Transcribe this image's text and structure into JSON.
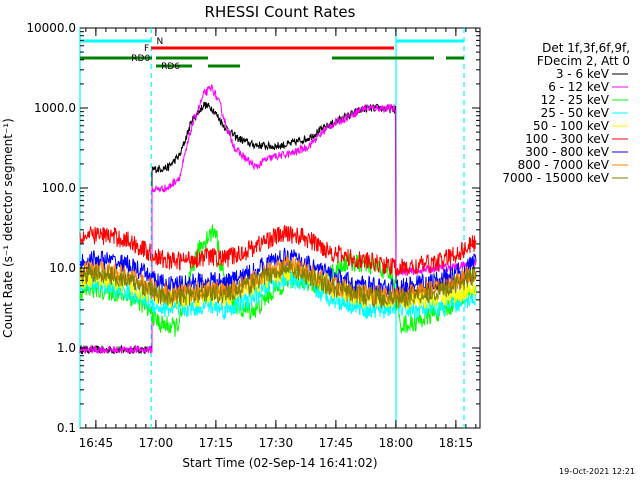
{
  "chart_data": {
    "type": "line",
    "title": "RHESSI Count Rates",
    "xlabel": "Start Time (02-Sep-14 16:41:02)",
    "ylabel": "Count Rate (s⁻¹ detector segment⁻¹)",
    "yscale": "log",
    "ylim": [
      0.1,
      10000
    ],
    "xlim_minutes_after_start": [
      0,
      100
    ],
    "y_ticks": [
      "0.1",
      "1.0",
      "10.0",
      "100.0",
      "1000.0",
      "10000.0"
    ],
    "x_ticks": [
      {
        "label": "16:45",
        "t": 3.97
      },
      {
        "label": "17:00",
        "t": 18.97
      },
      {
        "label": "17:15",
        "t": 33.97
      },
      {
        "label": "17:30",
        "t": 48.97
      },
      {
        "label": "17:45",
        "t": 63.97
      },
      {
        "label": "18:00",
        "t": 78.97
      },
      {
        "label": "18:15",
        "t": 93.97
      }
    ],
    "legend_header": [
      "Det 1f,3f,6f,9f,",
      "FDecim 2, Att 0"
    ],
    "legend_position": "right",
    "series": [
      {
        "name": "3 - 6 keV",
        "color": "#000000",
        "points": [
          [
            0,
            0.95
          ],
          [
            18,
            0.95
          ],
          [
            18.01,
            170
          ],
          [
            22,
            180
          ],
          [
            25,
            260
          ],
          [
            28,
            700
          ],
          [
            31,
            1100
          ],
          [
            33,
            1000
          ],
          [
            36,
            600
          ],
          [
            39,
            430
          ],
          [
            43,
            350
          ],
          [
            48,
            330
          ],
          [
            52,
            350
          ],
          [
            57,
            420
          ],
          [
            62,
            600
          ],
          [
            67,
            800
          ],
          [
            71,
            980
          ],
          [
            75,
            1000
          ],
          [
            78.9,
            950
          ],
          [
            79,
            7
          ],
          [
            80,
            4.5
          ],
          [
            82,
            5
          ],
          [
            86,
            5.5
          ],
          [
            90,
            6
          ],
          [
            95,
            7
          ],
          [
            99,
            8
          ]
        ]
      },
      {
        "name": "6 - 12 keV",
        "color": "#ff00ff",
        "points": [
          [
            0,
            0.95
          ],
          [
            18,
            0.95
          ],
          [
            18.01,
            95
          ],
          [
            22,
            100
          ],
          [
            25,
            140
          ],
          [
            28,
            600
          ],
          [
            31,
            1500
          ],
          [
            33,
            1800
          ],
          [
            35,
            1100
          ],
          [
            37,
            500
          ],
          [
            39,
            300
          ],
          [
            42,
            220
          ],
          [
            44,
            180
          ],
          [
            46,
            220
          ],
          [
            49,
            250
          ],
          [
            53,
            270
          ],
          [
            57,
            330
          ],
          [
            62,
            580
          ],
          [
            67,
            780
          ],
          [
            71,
            1000
          ],
          [
            75,
            1000
          ],
          [
            78.9,
            980
          ],
          [
            79,
            9
          ],
          [
            82,
            9
          ],
          [
            86,
            9.5
          ],
          [
            90,
            10
          ],
          [
            95,
            10.5
          ],
          [
            99,
            12
          ]
        ]
      },
      {
        "name": "12 - 25 keV",
        "color": "#00ff00",
        "points": [
          [
            0,
            5
          ],
          [
            4,
            5.5
          ],
          [
            8,
            5
          ],
          [
            12,
            4.5
          ],
          [
            16,
            3.5
          ],
          [
            20,
            2
          ],
          [
            24,
            1.8
          ],
          [
            26,
            3
          ],
          [
            28,
            10
          ],
          [
            30,
            18
          ],
          [
            32,
            25
          ],
          [
            34,
            30
          ],
          [
            35,
            12
          ],
          [
            37,
            5
          ],
          [
            40,
            3
          ],
          [
            44,
            3
          ],
          [
            48,
            5
          ],
          [
            52,
            7
          ],
          [
            56,
            7
          ],
          [
            60,
            6
          ],
          [
            63,
            9
          ],
          [
            67,
            12
          ],
          [
            71,
            11
          ],
          [
            75,
            10
          ],
          [
            78,
            8
          ],
          [
            80,
            2
          ],
          [
            83,
            2
          ],
          [
            87,
            2.5
          ],
          [
            91,
            3
          ],
          [
            95,
            4
          ],
          [
            99,
            5
          ]
        ]
      },
      {
        "name": "25 - 50 keV",
        "color": "#00ffff",
        "points": [
          [
            0,
            6
          ],
          [
            4,
            6.5
          ],
          [
            8,
            5.5
          ],
          [
            12,
            5
          ],
          [
            16,
            4
          ],
          [
            20,
            3.2
          ],
          [
            24,
            3
          ],
          [
            28,
            3.2
          ],
          [
            32,
            3.5
          ],
          [
            36,
            3
          ],
          [
            40,
            3.5
          ],
          [
            44,
            4.5
          ],
          [
            48,
            6.5
          ],
          [
            52,
            7.5
          ],
          [
            56,
            6.5
          ],
          [
            60,
            5
          ],
          [
            64,
            4
          ],
          [
            68,
            3.5
          ],
          [
            72,
            3
          ],
          [
            76,
            3
          ],
          [
            79,
            3.5
          ],
          [
            82,
            3
          ],
          [
            86,
            3
          ],
          [
            90,
            3.2
          ],
          [
            94,
            3.5
          ],
          [
            99,
            4.5
          ]
        ]
      },
      {
        "name": "50 - 100 keV",
        "color": "#ffff00",
        "points": [
          [
            0,
            7
          ],
          [
            4,
            7.5
          ],
          [
            8,
            7
          ],
          [
            12,
            6
          ],
          [
            16,
            5
          ],
          [
            20,
            4.2
          ],
          [
            24,
            4
          ],
          [
            28,
            4.2
          ],
          [
            32,
            4.5
          ],
          [
            36,
            4.3
          ],
          [
            40,
            5
          ],
          [
            44,
            6
          ],
          [
            48,
            8
          ],
          [
            52,
            9
          ],
          [
            56,
            8
          ],
          [
            60,
            6.5
          ],
          [
            64,
            5.2
          ],
          [
            68,
            4.5
          ],
          [
            72,
            4
          ],
          [
            76,
            4
          ],
          [
            79,
            4.3
          ],
          [
            82,
            4
          ],
          [
            86,
            4
          ],
          [
            90,
            4.2
          ],
          [
            94,
            4.6
          ],
          [
            99,
            6
          ]
        ]
      },
      {
        "name": "100 - 300 keV",
        "color": "#ff0000",
        "points": [
          [
            0,
            24
          ],
          [
            4,
            26
          ],
          [
            8,
            25
          ],
          [
            12,
            22
          ],
          [
            16,
            17
          ],
          [
            20,
            13
          ],
          [
            24,
            12
          ],
          [
            28,
            13
          ],
          [
            32,
            14
          ],
          [
            36,
            13
          ],
          [
            40,
            15
          ],
          [
            44,
            19
          ],
          [
            48,
            24
          ],
          [
            52,
            27
          ],
          [
            56,
            24
          ],
          [
            60,
            19
          ],
          [
            64,
            15
          ],
          [
            68,
            13
          ],
          [
            72,
            12
          ],
          [
            76,
            11
          ],
          [
            79,
            10
          ],
          [
            82,
            10
          ],
          [
            86,
            11
          ],
          [
            90,
            12
          ],
          [
            94,
            15
          ],
          [
            99,
            21
          ]
        ]
      },
      {
        "name": "300 - 800 keV",
        "color": "#0000ff",
        "points": [
          [
            0,
            12
          ],
          [
            4,
            13
          ],
          [
            8,
            12
          ],
          [
            12,
            11
          ],
          [
            16,
            8.5
          ],
          [
            20,
            6.5
          ],
          [
            24,
            6
          ],
          [
            28,
            6.5
          ],
          [
            32,
            7
          ],
          [
            36,
            6.5
          ],
          [
            40,
            7.5
          ],
          [
            44,
            9.5
          ],
          [
            48,
            12
          ],
          [
            52,
            14
          ],
          [
            56,
            12
          ],
          [
            60,
            9.5
          ],
          [
            64,
            7.5
          ],
          [
            68,
            6.5
          ],
          [
            72,
            6
          ],
          [
            76,
            5.7
          ],
          [
            79,
            5.5
          ],
          [
            82,
            5.8
          ],
          [
            86,
            6.5
          ],
          [
            90,
            7
          ],
          [
            94,
            8.5
          ],
          [
            99,
            12
          ]
        ]
      },
      {
        "name": "800 - 7000 keV",
        "color": "#ff8000",
        "points": [
          [
            0,
            9
          ],
          [
            4,
            9.5
          ],
          [
            8,
            9
          ],
          [
            12,
            8
          ],
          [
            16,
            6.5
          ],
          [
            20,
            5
          ],
          [
            24,
            4.7
          ],
          [
            28,
            5
          ],
          [
            32,
            5.5
          ],
          [
            36,
            5
          ],
          [
            40,
            6
          ],
          [
            44,
            7.5
          ],
          [
            48,
            9.5
          ],
          [
            52,
            11
          ],
          [
            56,
            9.5
          ],
          [
            60,
            7.5
          ],
          [
            64,
            6
          ],
          [
            68,
            5.2
          ],
          [
            72,
            4.8
          ],
          [
            76,
            4.6
          ],
          [
            79,
            4.5
          ],
          [
            82,
            4.7
          ],
          [
            86,
            5.2
          ],
          [
            90,
            5.6
          ],
          [
            94,
            6.8
          ],
          [
            99,
            9
          ]
        ]
      },
      {
        "name": "7000 - 15000 keV",
        "color": "#808000",
        "points": [
          [
            0,
            8
          ],
          [
            4,
            8.5
          ],
          [
            8,
            8
          ],
          [
            12,
            7
          ],
          [
            16,
            5.8
          ],
          [
            20,
            4.5
          ],
          [
            24,
            4.3
          ],
          [
            28,
            4.5
          ],
          [
            32,
            5
          ],
          [
            36,
            4.6
          ],
          [
            40,
            5.4
          ],
          [
            44,
            6.8
          ],
          [
            48,
            8.5
          ],
          [
            52,
            10
          ],
          [
            56,
            8.5
          ],
          [
            60,
            6.8
          ],
          [
            64,
            5.4
          ],
          [
            68,
            4.8
          ],
          [
            72,
            4.4
          ],
          [
            76,
            4.2
          ],
          [
            79,
            4.1
          ],
          [
            82,
            4.3
          ],
          [
            86,
            4.7
          ],
          [
            90,
            5.1
          ],
          [
            94,
            6.2
          ],
          [
            99,
            8.2
          ]
        ]
      }
    ],
    "flag_bars": [
      {
        "label": "N",
        "color": "#00ffff",
        "segments": [
          [
            0,
            17.8
          ],
          [
            79,
            96
          ]
        ]
      },
      {
        "label": "F",
        "color": "#ff0000",
        "segments": [
          [
            17.8,
            78.5
          ]
        ]
      },
      {
        "label": "RD0",
        "color": "#008000",
        "segments": [
          [
            0,
            18
          ],
          [
            19,
            32
          ],
          [
            63,
            88.5
          ],
          [
            91.5,
            96
          ]
        ]
      },
      {
        "label": "RD6",
        "color": "#008000",
        "segments": [
          [
            19,
            28
          ],
          [
            32,
            40
          ]
        ]
      }
    ],
    "vertical_markers": [
      {
        "t": 0,
        "style": "solid",
        "color": "#00ffff"
      },
      {
        "t": 17.8,
        "style": "dashed",
        "color": "#00ffff"
      },
      {
        "t": 79,
        "style": "solid",
        "color": "#00ffff"
      },
      {
        "t": 96,
        "style": "dashed",
        "color": "#00ffff"
      }
    ],
    "timestamp": "19-Oct-2021 12:21"
  }
}
